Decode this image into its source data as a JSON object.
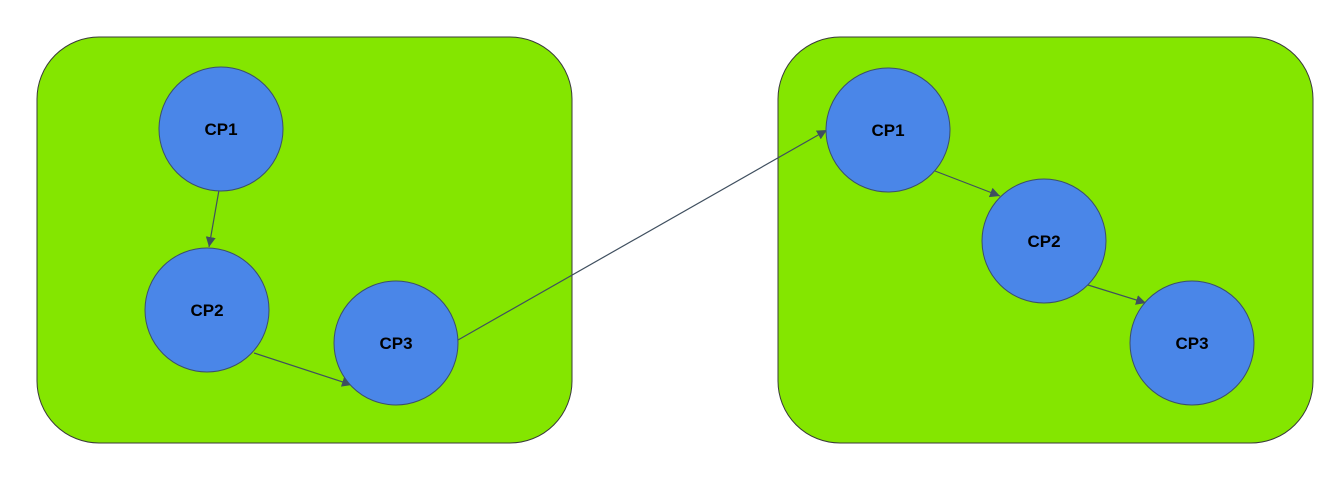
{
  "colors": {
    "panel_fill": "#84e600",
    "panel_stroke": "#3a3a3a",
    "node_fill": "#4a86e8",
    "node_stroke": "#3b4f6b",
    "edge": "#3f4f5f"
  },
  "groups": [
    {
      "nodes": [
        {
          "label": "CP1"
        },
        {
          "label": "CP2"
        },
        {
          "label": "CP3"
        }
      ]
    },
    {
      "nodes": [
        {
          "label": "CP1"
        },
        {
          "label": "CP2"
        },
        {
          "label": "CP3"
        }
      ]
    }
  ],
  "edges": [
    {
      "from": "group-1-cp1",
      "to": "group-1-cp2"
    },
    {
      "from": "group-1-cp2",
      "to": "group-1-cp3"
    },
    {
      "from": "group-1-cp3",
      "to": "group-2-cp1"
    },
    {
      "from": "group-2-cp1",
      "to": "group-2-cp2"
    },
    {
      "from": "group-2-cp2",
      "to": "group-2-cp3"
    }
  ]
}
